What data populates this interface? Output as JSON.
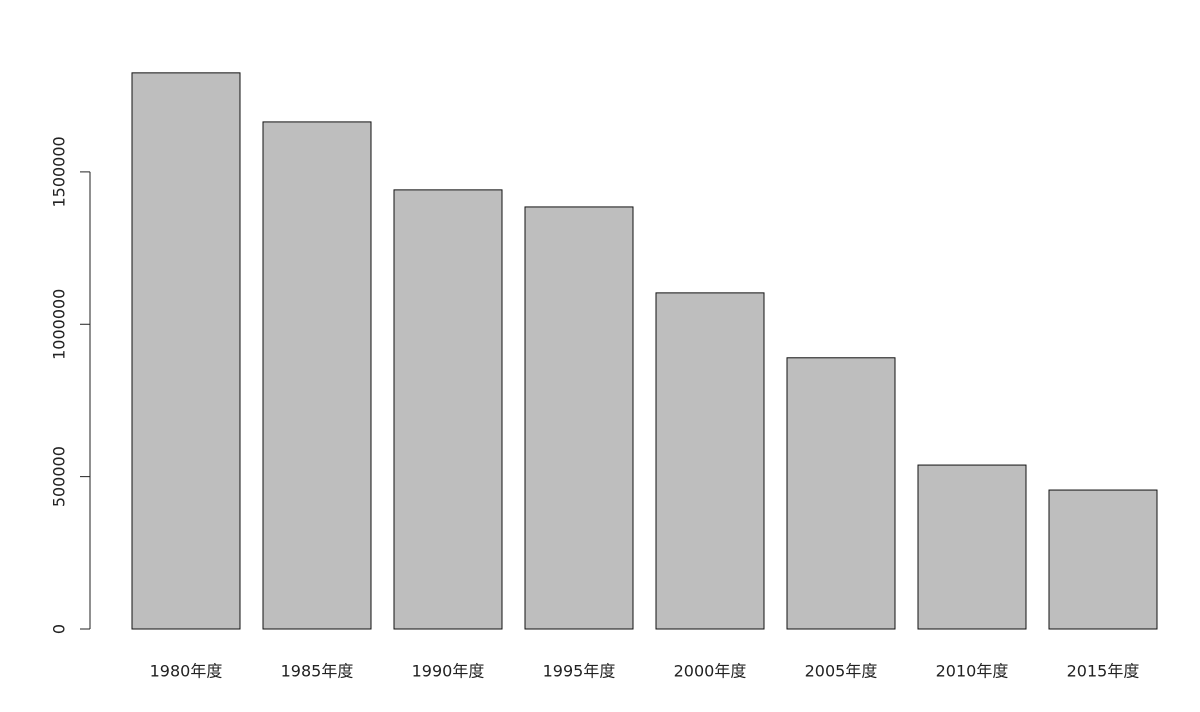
{
  "chart_data": {
    "type": "bar",
    "categories": [
      "1980年度",
      "1985年度",
      "1990年度",
      "1995年度",
      "2000年度",
      "2005年度",
      "2010年度",
      "2015年度"
    ],
    "values": [
      1825000,
      1664000,
      1441000,
      1385000,
      1103000,
      890000,
      538000,
      456000
    ],
    "color": "#bebebe",
    "ylim": [
      0,
      1900000
    ],
    "yticks": [
      0,
      500000,
      1000000,
      1500000
    ],
    "grid": false
  }
}
